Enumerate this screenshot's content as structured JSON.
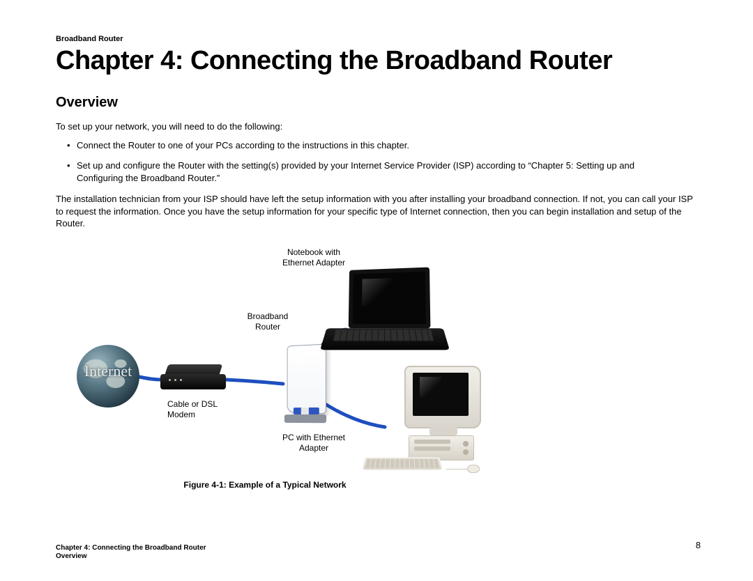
{
  "header": {
    "product": "Broadband Router"
  },
  "chapter": {
    "title": "Chapter 4: Connecting the Broadband Router"
  },
  "section": {
    "heading": "Overview"
  },
  "body": {
    "intro": "To set up your network, you will need to do the following:",
    "bullets": [
      "Connect the Router to one of your PCs according to the instructions in this chapter.",
      "Set up and configure the Router with the setting(s) provided by your Internet Service Provider (ISP) according to “Chapter 5: Setting up and Configuring the Broadband Router.”"
    ],
    "para2": "The installation technician from your ISP should have left the setup information with you after installing your broadband connection. If not, you can call your ISP to request the information. Once you have the setup information for your specific type of Internet connection, then you can begin installation and setup of the Router."
  },
  "diagram": {
    "globe_text": "Internet",
    "labels": {
      "notebook": "Notebook with\nEthernet Adapter",
      "router": "Broadband\nRouter",
      "modem": "Cable or DSL\nModem",
      "pc": "PC with Ethernet\nAdapter"
    },
    "caption": "Figure 4-1: Example of a Typical Network",
    "colors": {
      "wire": "#1e4fc0",
      "globe_dark": "#0c1a22",
      "device_beige": "#e9e5da",
      "black": "#0a0a0a"
    }
  },
  "footer": {
    "line1": "Chapter 4: Connecting the Broadband Router",
    "line2": "Overview",
    "page": "8"
  }
}
